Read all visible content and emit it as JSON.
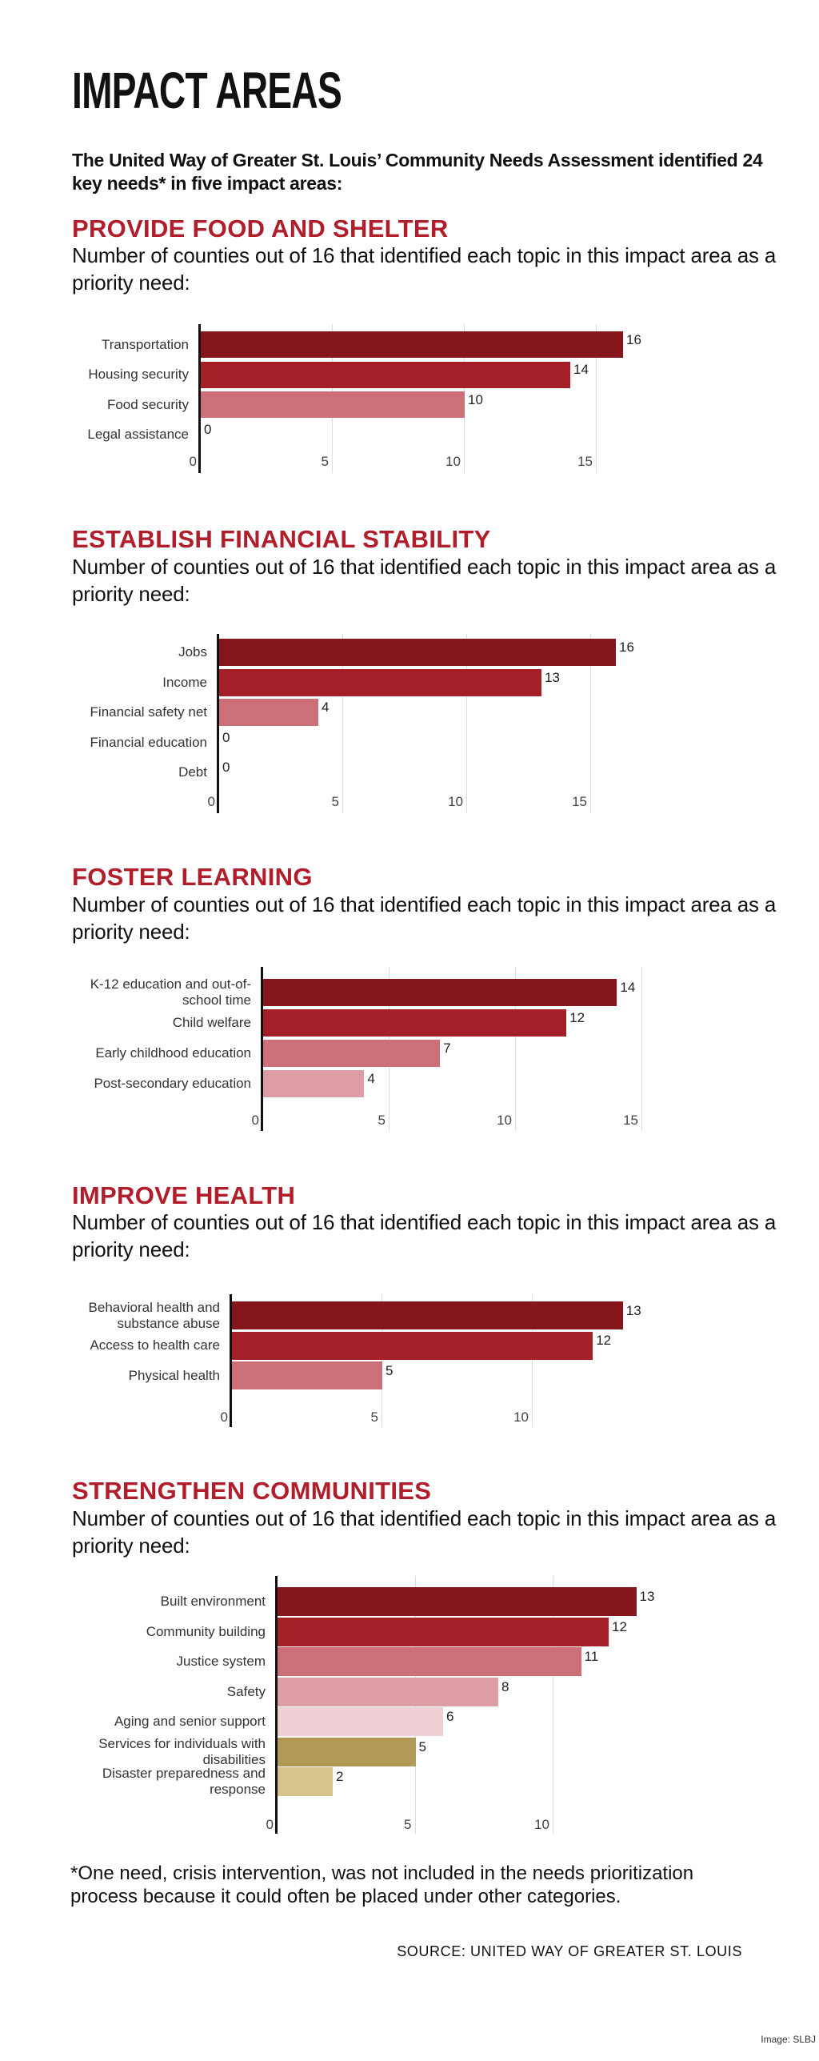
{
  "title": "IMPACT AREAS",
  "intro": "The United Way of Greater St. Louis’ Community Needs Assessment identified 24 key needs* in five impact areas:",
  "footnote": "*One need, crisis intervention, was not included in the needs prioritization process because it could often be placed under other categories.",
  "source": "SOURCE: UNITED WAY OF GREATER ST. LOUIS",
  "credit": "Image: SLBJ",
  "colors": {
    "heading": "#b01e2c",
    "dark_red": "#85161b",
    "red": "#a51f26",
    "rose": "#cc6f79",
    "pink": "#dc9da5",
    "light_pink": "#efd0d4",
    "gold": "#b09a56",
    "light_gold": "#d6c48d"
  },
  "chart_data": [
    {
      "type": "bar",
      "title": "PROVIDE FOOD AND SHELTER",
      "subtitle": "Number of counties out of 16 that identified each topic in this impact area as a priority need:",
      "categories": [
        "Transportation",
        "Housing security",
        "Food security",
        "Legal assistance"
      ],
      "values": [
        16,
        14,
        10,
        0
      ],
      "colors": [
        "#85161b",
        "#a51f26",
        "#cc6f79",
        "#dc9da5"
      ],
      "xticks": [
        0,
        5,
        10,
        15
      ],
      "xlim": [
        0,
        16
      ]
    },
    {
      "type": "bar",
      "title": "ESTABLISH FINANCIAL STABILITY",
      "subtitle": "Number of counties out of 16 that identified each topic in this impact area as a priority need:",
      "categories": [
        "Jobs",
        "Income",
        "Financial safety net",
        "Financial education",
        "Debt"
      ],
      "values": [
        16,
        13,
        4,
        0,
        0
      ],
      "colors": [
        "#85161b",
        "#a51f26",
        "#cc6f79",
        "#dc9da5",
        "#efd0d4"
      ],
      "xticks": [
        0,
        5,
        10,
        15
      ],
      "xlim": [
        0,
        16
      ]
    },
    {
      "type": "bar",
      "title": "FOSTER LEARNING",
      "subtitle": "Number of counties out of 16 that identified each topic in this impact area as a priority need:",
      "categories": [
        "K-12 education and out-of-school time",
        "Child welfare",
        "Early childhood education",
        "Post-secondary education"
      ],
      "values": [
        14,
        12,
        7,
        4
      ],
      "colors": [
        "#85161b",
        "#a51f26",
        "#cc6f79",
        "#dc9da5"
      ],
      "xticks": [
        0,
        5,
        10,
        15
      ],
      "xlim": [
        0,
        15
      ]
    },
    {
      "type": "bar",
      "title": "IMPROVE HEALTH",
      "subtitle": "Number of counties out of 16 that identified each topic in this impact area as a priority need:",
      "categories": [
        "Behavioral health and substance abuse",
        "Access to health care",
        "Physical health"
      ],
      "values": [
        13,
        12,
        5
      ],
      "colors": [
        "#85161b",
        "#a51f26",
        "#cc6f79"
      ],
      "xticks": [
        0,
        5,
        10
      ],
      "xlim": [
        0,
        13
      ]
    },
    {
      "type": "bar",
      "title": "STRENGTHEN COMMUNITIES",
      "subtitle": "Number of counties out of 16 that identified each topic in this impact area as a priority need:",
      "categories": [
        "Built environment",
        "Community building",
        "Justice system",
        "Safety",
        "Aging and senior support",
        "Services for individuals with disabilities",
        "Disaster preparedness and response"
      ],
      "values": [
        13,
        12,
        11,
        8,
        6,
        5,
        2
      ],
      "colors": [
        "#85161b",
        "#a51f26",
        "#cc6f79",
        "#dc9da5",
        "#efd0d4",
        "#b09a56",
        "#d6c48d"
      ],
      "xticks": [
        0,
        5,
        10
      ],
      "xlim": [
        0,
        13
      ]
    }
  ]
}
